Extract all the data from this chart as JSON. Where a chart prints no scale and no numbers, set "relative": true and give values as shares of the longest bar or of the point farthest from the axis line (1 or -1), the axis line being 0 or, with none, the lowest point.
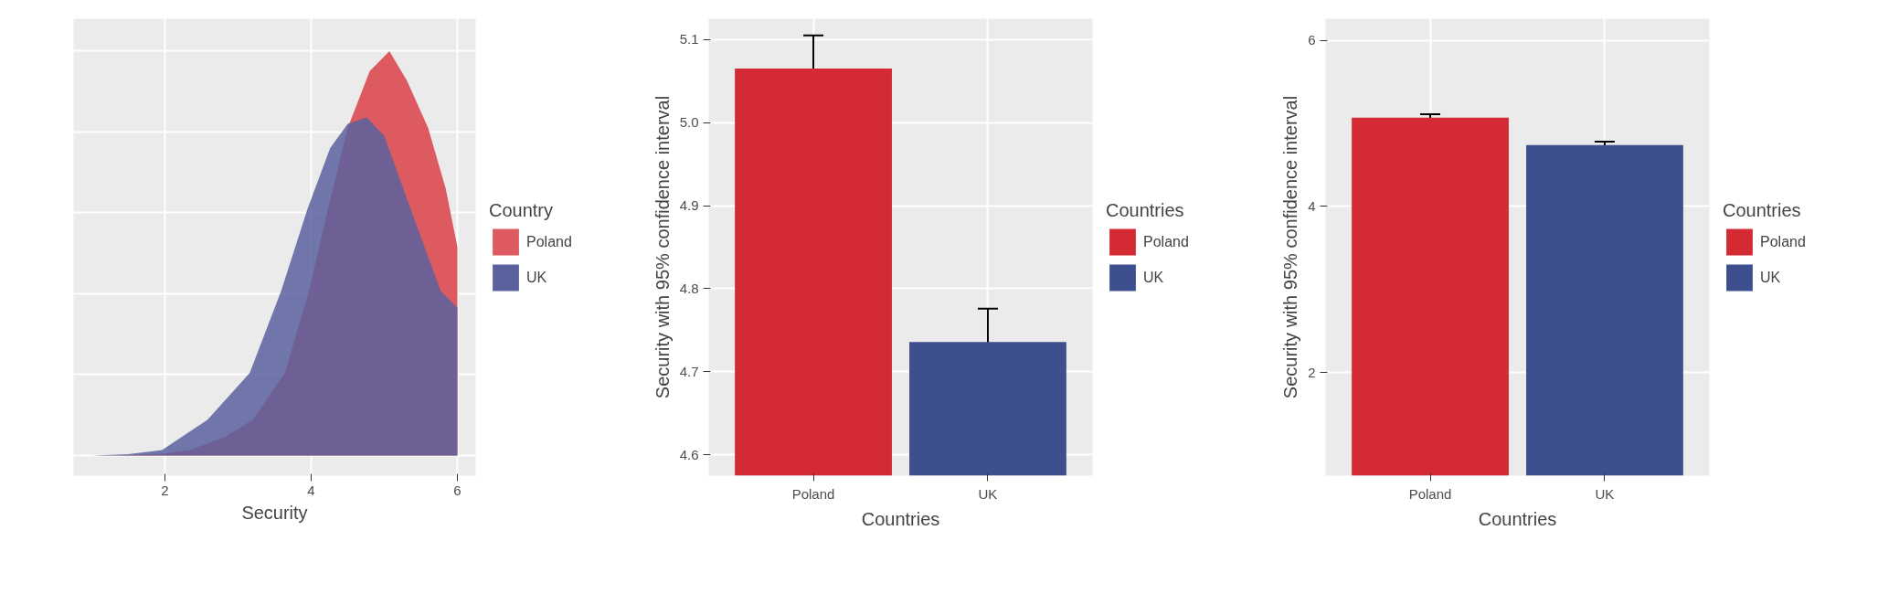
{
  "chart_data": [
    {
      "type": "area",
      "relative": true,
      "xlabel": "Security",
      "legend_title": "Country",
      "legend": "right",
      "grid": true,
      "xlim": [
        0.75,
        6.25
      ],
      "xticks": [
        2,
        4,
        6
      ],
      "series": [
        {
          "name": "Poland",
          "color": "#dd5a60",
          "x": [
            1.0,
            1.5,
            2.0,
            2.34,
            2.82,
            3.2,
            3.64,
            3.97,
            4.23,
            4.5,
            4.8,
            5.07,
            5.31,
            5.6,
            5.84,
            6.0
          ],
          "values": [
            0,
            0.001,
            0.005,
            0.013,
            0.046,
            0.088,
            0.204,
            0.407,
            0.61,
            0.81,
            0.95,
            1.0,
            0.927,
            0.81,
            0.66,
            0.516
          ]
        },
        {
          "name": "UK",
          "color": "#5a629e",
          "x": [
            1.0,
            1.5,
            1.96,
            2.58,
            3.16,
            3.59,
            3.95,
            4.26,
            4.5,
            4.76,
            5.0,
            5.36,
            5.77,
            6.0
          ],
          "values": [
            0,
            0.003,
            0.013,
            0.088,
            0.204,
            0.407,
            0.61,
            0.76,
            0.82,
            0.836,
            0.79,
            0.61,
            0.407,
            0.365
          ]
        }
      ]
    },
    {
      "type": "bar",
      "xlabel": "Countries",
      "ylabel": "Security with 95% confidence interval",
      "legend_title": "Countries",
      "legend": "right",
      "grid": true,
      "categories": [
        "Poland",
        "UK"
      ],
      "ylim": [
        4.575,
        5.125
      ],
      "yticks": [
        4.6,
        4.7,
        4.8,
        4.9,
        {
          "value": 5.0,
          "label": "5.0"
        },
        5.1
      ],
      "series": [
        {
          "name": "Poland",
          "color": "#d42a33",
          "values": [
            5.065,
            null
          ],
          "errors": [
            0.04,
            null
          ]
        },
        {
          "name": "UK",
          "color": "#3d4f8e",
          "values": [
            null,
            4.736
          ],
          "errors": [
            null,
            0.04
          ]
        }
      ]
    },
    {
      "type": "bar",
      "xlabel": "Countries",
      "ylabel": "Security with 95% confidence interval",
      "legend_title": "Countries",
      "legend": "right",
      "grid": true,
      "categories": [
        "Poland",
        "UK"
      ],
      "ylim": [
        0.76,
        6.26
      ],
      "yticks": [
        2,
        4,
        6
      ],
      "series": [
        {
          "name": "Poland",
          "color": "#d42a33",
          "values": [
            5.07,
            null
          ],
          "errors": [
            0.04,
            null
          ]
        },
        {
          "name": "UK",
          "color": "#3d4f8e",
          "values": [
            null,
            4.74
          ],
          "errors": [
            null,
            0.04
          ]
        }
      ]
    }
  ]
}
